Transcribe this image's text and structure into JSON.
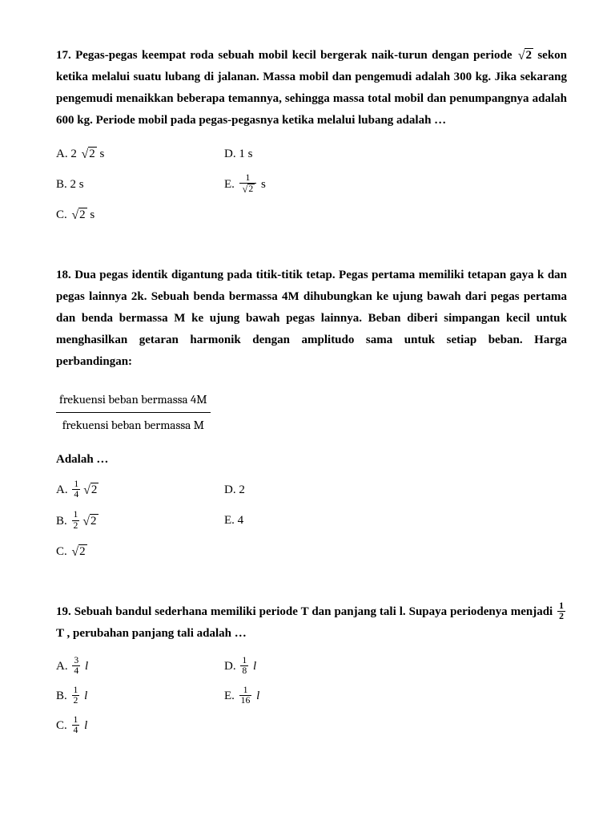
{
  "q17": {
    "num": "17.",
    "part1": "Pegas-pegas keempat roda sebuah mobil kecil bergerak naik-turun dengan periode ",
    "sqrt_val": "2",
    "part2": " sekon ketika melalui suatu lubang di jalanan. Massa mobil dan pengemudi adalah 300 kg. Jika sekarang pengemudi menaikkan beberapa temannya, sehingga massa total mobil dan penumpangnya adalah 600 kg. Periode mobil pada pegas-pegasnya ketika melalui lubang adalah …",
    "A_pre": "A. 2 ",
    "A_sqrt": "2",
    "A_post": " s",
    "B": "B. 2 s",
    "C_pre": "C. ",
    "C_sqrt": "2",
    "C_post": " s",
    "D": "D. 1 s",
    "E_pre": "E. ",
    "E_num": "1",
    "E_den_sqrt": "2",
    "E_post": " s"
  },
  "q18": {
    "num": "18.",
    "text": "Dua pegas identik digantung pada titik-titik tetap. Pegas pertama memiliki tetapan gaya k dan pegas lainnya 2k. Sebuah benda bermassa 4M dihubungkan ke ujung bawah dari pegas pertama dan benda bermassa M ke ujung bawah pegas lainnya. Beban diberi simpangan kecil untuk menghasilkan getaran harmonik dengan amplitudo sama untuk setiap beban. Harga perbandingan:",
    "ratio_num": "frekuensi beban bermassa 4M",
    "ratio_den": "frekuensi beban bermassa M",
    "adalah": "Adalah …",
    "A_pre": "A. ",
    "A_n": "1",
    "A_d": "4",
    "A_sqrt": "2",
    "B_pre": "B. ",
    "B_n": "1",
    "B_d": "2",
    "B_sqrt": "2",
    "C_pre": "C. ",
    "C_sqrt": "2",
    "D": "D. 2",
    "E": "E. 4"
  },
  "q19": {
    "num": "19.",
    "part1": "Sebuah bandul sederhana memiliki periode T dan panjang tali l. Supaya periodenya menjadi ",
    "p_n": "1",
    "p_d": "2",
    "part2": " T , perubahan panjang tali adalah …",
    "A_pre": "A. ",
    "A_n": "3",
    "A_d": "4",
    "l": "l",
    "B_pre": "B. ",
    "B_n": "1",
    "B_d": "2",
    "C_pre": "C. ",
    "C_n": "1",
    "C_d": "4",
    "D_pre": "D. ",
    "D_n": "1",
    "D_d": "8",
    "E_pre": "E. ",
    "E_n": "1",
    "E_d": "16"
  }
}
